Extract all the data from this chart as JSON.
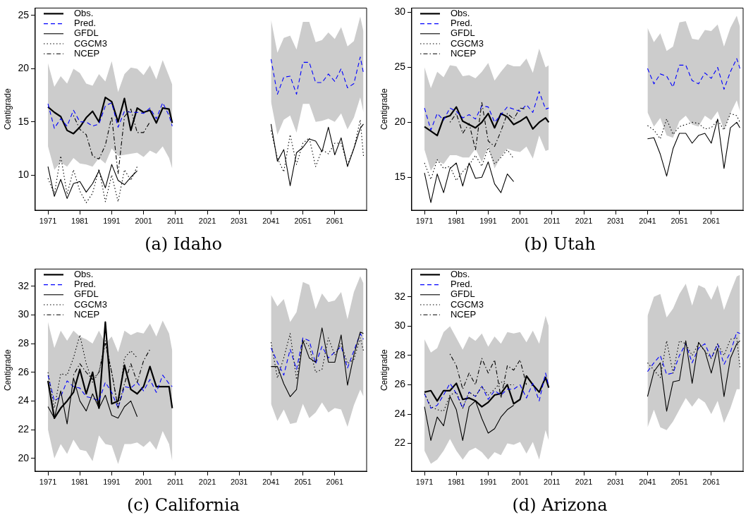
{
  "chart_data": [
    {
      "type": "line",
      "title": "(a) Idaho",
      "ylabel": "Centigrade",
      "legend": "top left",
      "grid": false,
      "xlim": [
        1967,
        2071
      ],
      "xticks": [
        1971,
        1981,
        1991,
        2001,
        2011,
        2021,
        2031,
        2041,
        2051,
        2061
      ],
      "ylim": [
        6.7,
        25.7
      ],
      "yticks": [
        10,
        15,
        20,
        25
      ],
      "x": [
        1971,
        1973,
        1975,
        1977,
        1979,
        1981,
        1983,
        1985,
        1987,
        1989,
        1991,
        1993,
        1995,
        1997,
        1999,
        2001,
        2003,
        2005,
        2007,
        2009,
        2010,
        2025,
        2041,
        2043,
        2045,
        2047,
        2049,
        2051,
        2053,
        2055,
        2057,
        2059,
        2061,
        2063,
        2065,
        2067,
        2069,
        2070
      ],
      "series": [
        {
          "name": "Obs.",
          "color": "#000000",
          "line_style": "solid",
          "values": [
            16.4,
            15.9,
            15.5,
            14.2,
            13.9,
            14.5,
            15.4,
            16.0,
            15.0,
            17.3,
            16.9,
            15.0,
            17.2,
            14.2,
            16.3,
            15.9,
            16.1,
            14.9,
            16.3,
            16.2,
            14.9,
            null,
            null,
            null,
            null,
            null,
            null,
            null,
            null,
            null,
            null,
            null,
            null,
            null,
            null,
            null,
            null,
            null
          ]
        },
        {
          "name": "Pred.",
          "color": "#0000ff",
          "line_style": "dashed",
          "values": [
            16.7,
            14.4,
            15.3,
            14.6,
            16.1,
            15.0,
            15.0,
            14.6,
            14.8,
            16.5,
            16.8,
            14.5,
            16.0,
            15.9,
            15.9,
            15.8,
            16.3,
            15.3,
            16.8,
            15.6,
            14.6,
            null,
            20.9,
            17.6,
            19.2,
            19.3,
            17.6,
            20.6,
            20.6,
            18.7,
            18.7,
            19.5,
            18.8,
            20.0,
            18.2,
            18.6,
            21.1,
            19.6
          ],
          "lower": [
            12.7,
            10.5,
            11.2,
            10.8,
            11.6,
            11.1,
            11.0,
            10.8,
            11.6,
            11.1,
            12.5,
            11.8,
            11.9,
            12.0,
            12.1,
            11.7,
            12.3,
            12.0,
            12.7,
            11.6,
            10.6,
            null,
            16.9,
            13.8,
            15.2,
            15.6,
            14.0,
            16.7,
            16.7,
            15.0,
            15.1,
            15.3,
            15.0,
            15.8,
            14.3,
            15.4,
            17.3,
            15.9
          ],
          "upper": [
            20.5,
            18.3,
            19.3,
            18.6,
            20.0,
            19.6,
            18.6,
            18.4,
            19.5,
            18.8,
            20.7,
            17.8,
            19.5,
            20.1,
            20.0,
            19.4,
            20.3,
            19.0,
            20.8,
            19.3,
            18.5,
            null,
            24.6,
            21.5,
            22.9,
            23.1,
            21.8,
            24.4,
            24.4,
            22.5,
            22.7,
            23.4,
            22.8,
            23.9,
            22.1,
            22.6,
            24.9,
            23.5
          ]
        },
        {
          "name": "GFDL",
          "color": "#000000",
          "line_style": "solid",
          "values": [
            10.8,
            8.0,
            9.6,
            7.8,
            9.2,
            9.4,
            8.4,
            9.2,
            10.4,
            8.8,
            11.0,
            9.5,
            9.1,
            9.8,
            10.4,
            null,
            null,
            null,
            null,
            null,
            null,
            null,
            14.8,
            11.3,
            12.4,
            9.0,
            12.1,
            12.6,
            13.4,
            13.2,
            12.2,
            14.5,
            11.9,
            13.5,
            10.8,
            12.5,
            14.4,
            14.8
          ]
        },
        {
          "name": "CGCM3",
          "color": "#000000",
          "line_style": "dotted",
          "values": [
            9.7,
            8.2,
            11.8,
            8.2,
            10.5,
            8.5,
            7.4,
            8.3,
            10.6,
            7.5,
            10.0,
            7.5,
            10.5,
            9.5,
            10.8,
            null,
            null,
            null,
            null,
            null,
            null,
            null,
            14.2,
            11.6,
            10.3,
            13.8,
            11.0,
            13.0,
            13.5,
            10.8,
            12.4,
            12.0,
            13.0,
            13.0,
            11.0,
            12.5,
            15.2,
            11.8
          ]
        },
        {
          "name": "NCEP",
          "color": "#000000",
          "line_style": "dashdot",
          "values": [
            null,
            null,
            null,
            null,
            15.6,
            14.3,
            13.8,
            11.8,
            11.5,
            12.8,
            15.5,
            10.1,
            15.5,
            16.2,
            14.0,
            14.0,
            15.0,
            null,
            null,
            null,
            null,
            null,
            null,
            null,
            null,
            null,
            null,
            null,
            null,
            null,
            null,
            null,
            null,
            null,
            null,
            null,
            null,
            null
          ]
        }
      ]
    },
    {
      "type": "line",
      "title": "(b) Utah",
      "ylabel": "Centigrade",
      "legend": "top left",
      "grid": false,
      "xlim": [
        1967,
        2071
      ],
      "xticks": [
        1971,
        1981,
        1991,
        2001,
        2011,
        2021,
        2031,
        2041,
        2051,
        2061
      ],
      "ylim": [
        12,
        30.4
      ],
      "yticks": [
        15,
        20,
        25,
        30
      ],
      "x": [
        1971,
        1973,
        1975,
        1977,
        1979,
        1981,
        1983,
        1985,
        1987,
        1989,
        1991,
        1993,
        1995,
        1997,
        1999,
        2001,
        2003,
        2005,
        2007,
        2009,
        2010,
        2025,
        2041,
        2043,
        2045,
        2047,
        2049,
        2051,
        2053,
        2055,
        2057,
        2059,
        2061,
        2063,
        2065,
        2067,
        2069,
        2070
      ],
      "series": [
        {
          "name": "Obs.",
          "color": "#000000",
          "line_style": "solid",
          "values": [
            19.6,
            19.2,
            18.8,
            20.4,
            20.6,
            21.4,
            20.1,
            19.8,
            19.5,
            20.0,
            20.8,
            19.5,
            20.8,
            20.5,
            19.8,
            20.1,
            20.5,
            19.4,
            20.0,
            20.4,
            20.0,
            null,
            null,
            null,
            null,
            null,
            null,
            null,
            null,
            null,
            null,
            null,
            null,
            null,
            null,
            null,
            null,
            null
          ]
        },
        {
          "name": "Pred.",
          "color": "#0000ff",
          "line_style": "dashed",
          "values": [
            21.3,
            19.3,
            20.8,
            20.2,
            21.3,
            21.0,
            20.4,
            20.7,
            20.3,
            21.5,
            21.4,
            20.0,
            20.7,
            21.4,
            21.2,
            21.0,
            21.6,
            20.9,
            22.8,
            21.2,
            21.3,
            null,
            24.9,
            23.5,
            24.4,
            24.2,
            23.2,
            25.2,
            25.2,
            23.8,
            23.5,
            24.5,
            24.0,
            25.0,
            23.0,
            24.6,
            25.8,
            24.9
          ],
          "lower": [
            17.5,
            15.6,
            16.5,
            16.2,
            17.0,
            17.0,
            16.8,
            16.8,
            17.6,
            16.4,
            17.8,
            15.8,
            16.9,
            17.6,
            17.4,
            17.3,
            17.8,
            16.7,
            18.8,
            17.4,
            17.5,
            null,
            20.9,
            19.6,
            20.4,
            18.8,
            18.6,
            20.1,
            20.6,
            19.8,
            19.6,
            20.6,
            20.2,
            21.0,
            19.3,
            20.8,
            22.0,
            21.0
          ],
          "upper": [
            25.0,
            23.1,
            24.6,
            24.1,
            25.2,
            25.1,
            24.2,
            24.3,
            24.0,
            24.6,
            25.4,
            23.8,
            24.6,
            25.3,
            25.1,
            25.1,
            25.8,
            24.5,
            26.7,
            25.0,
            25.2,
            null,
            28.6,
            27.3,
            28.1,
            26.5,
            26.9,
            29.1,
            29.2,
            27.6,
            27.5,
            28.4,
            28.3,
            28.9,
            26.9,
            28.6,
            29.7,
            28.7
          ]
        },
        {
          "name": "GFDL",
          "color": "#000000",
          "line_style": "solid",
          "values": [
            15.4,
            12.7,
            15.3,
            13.6,
            15.8,
            16.3,
            14.2,
            16.3,
            14.9,
            15.0,
            16.4,
            14.4,
            13.6,
            15.3,
            14.6,
            null,
            null,
            null,
            null,
            null,
            null,
            null,
            18.5,
            18.6,
            17.1,
            15.1,
            17.6,
            19.0,
            19.0,
            18.1,
            18.8,
            19.0,
            18.1,
            20.3,
            15.8,
            19.5,
            20.0,
            19.5
          ]
        },
        {
          "name": "CGCM3",
          "color": "#000000",
          "line_style": "dotted",
          "values": [
            16.3,
            14.8,
            16.6,
            15.8,
            16.0,
            14.7,
            15.5,
            16.1,
            17.0,
            16.0,
            17.7,
            16.2,
            16.8,
            17.5,
            16.7,
            null,
            null,
            null,
            null,
            null,
            null,
            null,
            19.7,
            19.3,
            18.5,
            20.3,
            18.9,
            19.6,
            19.8,
            20.0,
            19.9,
            19.4,
            19.5,
            20.2,
            19.3,
            20.8,
            20.6,
            20.0
          ]
        },
        {
          "name": "NCEP",
          "color": "#000000",
          "line_style": "dashdot",
          "values": [
            null,
            null,
            null,
            null,
            20.0,
            20.8,
            19.0,
            19.9,
            17.5,
            21.8,
            18.3,
            17.8,
            19.2,
            20.8,
            20.3,
            21.3,
            21.2,
            null,
            null,
            null,
            null,
            null,
            null,
            null,
            null,
            null,
            null,
            null,
            null,
            null,
            null,
            null,
            null,
            null,
            null,
            null,
            null,
            null
          ]
        }
      ]
    },
    {
      "type": "line",
      "title": "(c) California",
      "ylabel": "Centigrade",
      "legend": "top left",
      "grid": false,
      "xlim": [
        1967,
        2071
      ],
      "xticks": [
        1971,
        1981,
        1991,
        2001,
        2011,
        2021,
        2031,
        2041,
        2051,
        2061
      ],
      "ylim": [
        19.1,
        33.2
      ],
      "yticks": [
        20,
        22,
        24,
        26,
        28,
        30,
        32
      ],
      "x": [
        1971,
        1973,
        1975,
        1977,
        1979,
        1981,
        1983,
        1985,
        1987,
        1989,
        1991,
        1993,
        1995,
        1997,
        1999,
        2001,
        2003,
        2005,
        2007,
        2009,
        2010,
        2025,
        2041,
        2043,
        2045,
        2047,
        2049,
        2051,
        2053,
        2055,
        2057,
        2059,
        2061,
        2063,
        2065,
        2067,
        2069,
        2070
      ],
      "series": [
        {
          "name": "Obs.",
          "color": "#000000",
          "line_style": "solid",
          "values": [
            25.4,
            22.8,
            23.5,
            24.0,
            24.6,
            26.2,
            24.5,
            26.0,
            23.5,
            29.5,
            23.8,
            24.0,
            26.5,
            24.8,
            24.5,
            25.0,
            26.4,
            25.0,
            25.0,
            25.0,
            23.5,
            null,
            null,
            null,
            null,
            null,
            null,
            null,
            null,
            null,
            null,
            null,
            null,
            null,
            null,
            null,
            null,
            null
          ]
        },
        {
          "name": "Pred.",
          "color": "#0000ff",
          "line_style": "dashed",
          "values": [
            25.8,
            24.0,
            24.3,
            25.4,
            25.0,
            24.9,
            24.3,
            24.2,
            24.0,
            25.3,
            24.6,
            23.5,
            25.0,
            24.9,
            25.3,
            24.7,
            25.5,
            24.6,
            25.8,
            25.2,
            25.0,
            null,
            27.7,
            26.7,
            25.8,
            27.6,
            26.2,
            28.4,
            28.2,
            26.6,
            27.8,
            27.0,
            27.4,
            27.8,
            26.3,
            27.5,
            28.7,
            28.3
          ],
          "lower": [
            22.0,
            20.0,
            21.0,
            20.3,
            21.3,
            20.6,
            20.5,
            19.8,
            21.6,
            21.0,
            20.9,
            19.6,
            21.0,
            21.0,
            21.1,
            20.8,
            21.2,
            20.6,
            21.9,
            21.0,
            19.8,
            null,
            23.8,
            22.6,
            23.4,
            22.4,
            22.5,
            23.8,
            22.8,
            23.2,
            23.9,
            23.2,
            23.5,
            23.4,
            22.2,
            23.7,
            24.8,
            24.3
          ],
          "upper": [
            29.5,
            27.7,
            28.9,
            28.2,
            28.9,
            28.5,
            28.3,
            28.0,
            28.9,
            28.0,
            28.5,
            27.4,
            28.9,
            28.6,
            28.8,
            28.7,
            29.4,
            28.5,
            29.6,
            28.7,
            27.5,
            null,
            31.4,
            30.6,
            31.1,
            29.5,
            30.2,
            32.3,
            32.1,
            30.4,
            31.5,
            30.9,
            31.0,
            31.6,
            29.7,
            31.6,
            32.7,
            32.2
          ]
        },
        {
          "name": "GFDL",
          "color": "#000000",
          "line_style": "solid",
          "values": [
            23.6,
            22.8,
            24.7,
            22.4,
            25.6,
            24.0,
            23.3,
            24.5,
            23.5,
            24.4,
            23.0,
            22.8,
            23.6,
            24.0,
            22.9,
            null,
            null,
            null,
            null,
            null,
            null,
            null,
            26.4,
            26.4,
            25.2,
            24.3,
            24.8,
            28.2,
            27.0,
            26.7,
            29.1,
            26.7,
            26.7,
            28.6,
            25.1,
            27.2,
            28.8,
            28.7
          ]
        },
        {
          "name": "CGCM3",
          "color": "#000000",
          "line_style": "dotted",
          "values": [
            26.0,
            23.5,
            25.9,
            25.8,
            27.0,
            28.6,
            26.6,
            25.3,
            26.0,
            28.2,
            26.0,
            23.5,
            27.0,
            27.5,
            27.0,
            null,
            null,
            null,
            null,
            null,
            null,
            null,
            28.1,
            25.6,
            27.0,
            28.7,
            25.5,
            28.3,
            27.8,
            26.0,
            26.2,
            28.4,
            27.2,
            28.0,
            26.6,
            26.9,
            28.4,
            27.5
          ]
        },
        {
          "name": "NCEP",
          "color": "#000000",
          "line_style": "dashdot",
          "values": [
            null,
            null,
            null,
            null,
            25.8,
            26.6,
            26.0,
            25.5,
            26.0,
            28.0,
            26.0,
            23.5,
            25.2,
            26.6,
            25.3,
            26.8,
            27.6,
            null,
            null,
            null,
            null,
            null,
            null,
            null,
            null,
            null,
            null,
            null,
            null,
            null,
            null,
            null,
            null,
            null,
            null,
            null,
            null,
            null
          ]
        }
      ]
    },
    {
      "type": "line",
      "title": "(d) Arizona",
      "ylabel": "Centigrade",
      "legend": "top left",
      "grid": false,
      "xlim": [
        1967,
        2071
      ],
      "xticks": [
        1971,
        1981,
        1991,
        2001,
        2011,
        2021,
        2031,
        2041,
        2051,
        2061
      ],
      "ylim": [
        20.1,
        33.9
      ],
      "yticks": [
        22,
        24,
        26,
        28,
        30,
        32
      ],
      "x": [
        1971,
        1973,
        1975,
        1977,
        1979,
        1981,
        1983,
        1985,
        1987,
        1989,
        1991,
        1993,
        1995,
        1997,
        1999,
        2001,
        2003,
        2005,
        2007,
        2009,
        2010,
        2025,
        2041,
        2043,
        2045,
        2047,
        2049,
        2051,
        2053,
        2055,
        2057,
        2059,
        2061,
        2063,
        2065,
        2067,
        2069,
        2070
      ],
      "series": [
        {
          "name": "Obs.",
          "color": "#000000",
          "line_style": "solid",
          "values": [
            25.5,
            25.6,
            24.9,
            25.6,
            25.6,
            26.1,
            25.0,
            25.1,
            24.9,
            24.5,
            24.8,
            25.3,
            25.4,
            26.0,
            24.7,
            25.0,
            26.6,
            26.0,
            25.5,
            26.5,
            25.8,
            null,
            null,
            null,
            null,
            null,
            null,
            null,
            null,
            null,
            null,
            null,
            null,
            null,
            null,
            null,
            null,
            null
          ]
        },
        {
          "name": "Pred.",
          "color": "#0000ff",
          "line_style": "dashed",
          "values": [
            25.4,
            24.4,
            24.6,
            25.3,
            26.1,
            25.4,
            24.4,
            25.5,
            25.2,
            25.9,
            25.0,
            25.6,
            25.3,
            25.7,
            25.7,
            26.0,
            25.1,
            26.1,
            24.9,
            26.8,
            25.9,
            null,
            26.9,
            27.5,
            28.0,
            26.7,
            26.8,
            28.0,
            28.8,
            27.5,
            28.5,
            28.8,
            27.8,
            28.8,
            27.4,
            28.2,
            29.6,
            29.5
          ],
          "lower": [
            21.5,
            20.6,
            20.9,
            21.5,
            22.3,
            21.5,
            20.9,
            21.5,
            21.7,
            21.4,
            20.9,
            21.4,
            21.2,
            22.0,
            21.9,
            22.1,
            21.3,
            22.1,
            20.9,
            22.9,
            22.2,
            null,
            23.1,
            24.3,
            23.1,
            22.9,
            23.5,
            24.3,
            25.1,
            24.5,
            25.1,
            24.8,
            24.0,
            24.9,
            23.4,
            24.4,
            25.7,
            25.7
          ],
          "upper": [
            29.1,
            28.2,
            28.5,
            29.6,
            30.0,
            29.2,
            28.4,
            29.3,
            29.0,
            29.5,
            28.6,
            29.3,
            28.8,
            29.6,
            29.5,
            29.6,
            28.9,
            29.7,
            28.8,
            30.7,
            30.0,
            null,
            30.7,
            32.0,
            32.2,
            30.6,
            31.2,
            32.2,
            32.9,
            31.4,
            32.8,
            32.6,
            31.8,
            32.8,
            31.1,
            32.3,
            33.4,
            33.5
          ]
        },
        {
          "name": "GFDL",
          "color": "#000000",
          "line_style": "solid",
          "values": [
            24.5,
            22.2,
            23.8,
            23.2,
            25.2,
            24.3,
            22.2,
            24.5,
            24.9,
            23.7,
            22.7,
            23.0,
            23.8,
            24.3,
            24.6,
            null,
            null,
            null,
            null,
            null,
            null,
            null,
            25.2,
            26.9,
            27.5,
            24.2,
            26.2,
            26.3,
            29.0,
            26.1,
            28.9,
            28.3,
            26.8,
            28.5,
            25.2,
            27.8,
            28.8,
            29.0
          ]
        },
        {
          "name": "CGCM3",
          "color": "#000000",
          "line_style": "dotted",
          "values": [
            25.4,
            24.5,
            24.3,
            24.2,
            25.3,
            25.5,
            24.4,
            25.5,
            25.2,
            25.9,
            25.3,
            25.7,
            26.2,
            26.0,
            26.0,
            null,
            null,
            null,
            null,
            null,
            null,
            null,
            27.5,
            27.0,
            26.5,
            29.0,
            26.8,
            29.0,
            28.8,
            28.0,
            28.8,
            28.3,
            27.8,
            28.8,
            28.0,
            29.1,
            29.2,
            27.2
          ]
        },
        {
          "name": "NCEP",
          "color": "#000000",
          "line_style": "dashdot",
          "values": [
            null,
            null,
            null,
            null,
            28.1,
            27.3,
            25.7,
            26.8,
            26.0,
            27.8,
            26.8,
            27.7,
            25.1,
            27.3,
            27.0,
            27.7,
            26.0,
            null,
            null,
            null,
            null,
            null,
            null,
            null,
            null,
            null,
            null,
            null,
            null,
            null,
            null,
            null,
            null,
            null,
            null,
            null,
            null,
            null
          ]
        }
      ]
    }
  ]
}
